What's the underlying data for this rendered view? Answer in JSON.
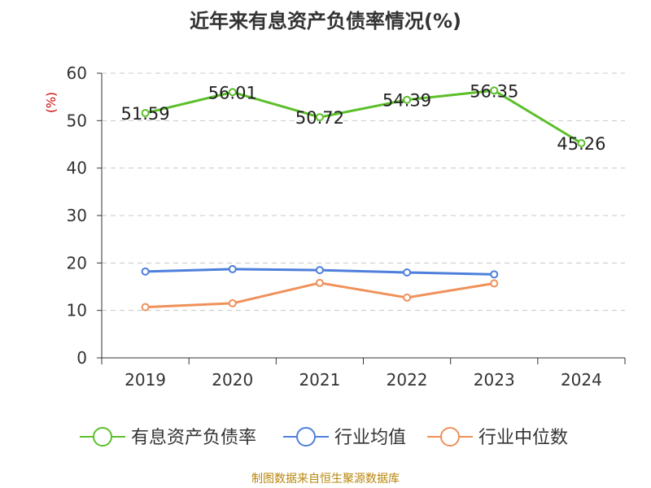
{
  "chart_data": {
    "type": "line",
    "title": "近年来有息资产负债率情况(%)",
    "ylabel": "(%)",
    "xlabel": "",
    "categories": [
      "2019",
      "2020",
      "2021",
      "2022",
      "2023",
      "2024"
    ],
    "ylim": [
      0,
      60
    ],
    "yticks": [
      0,
      10,
      20,
      30,
      40,
      50,
      60
    ],
    "grid": true,
    "legend_position": "bottom",
    "series": [
      {
        "name": "有息资产负债率",
        "color": "#5cbf2a",
        "values": [
          51.59,
          56.01,
          50.72,
          54.39,
          56.35,
          45.26
        ],
        "labels": [
          "51.59",
          "56.01",
          "50.72",
          "54.39",
          "56.35",
          "45.26"
        ]
      },
      {
        "name": "行业均值",
        "color": "#4e7fdc",
        "values": [
          18.2,
          18.7,
          18.5,
          18.0,
          17.6,
          null
        ]
      },
      {
        "name": "行业中位数",
        "color": "#f0915a",
        "values": [
          10.7,
          11.5,
          15.8,
          12.7,
          15.7,
          null
        ]
      }
    ]
  },
  "footer": {
    "source": "制图数据来自恒生聚源数据库"
  }
}
